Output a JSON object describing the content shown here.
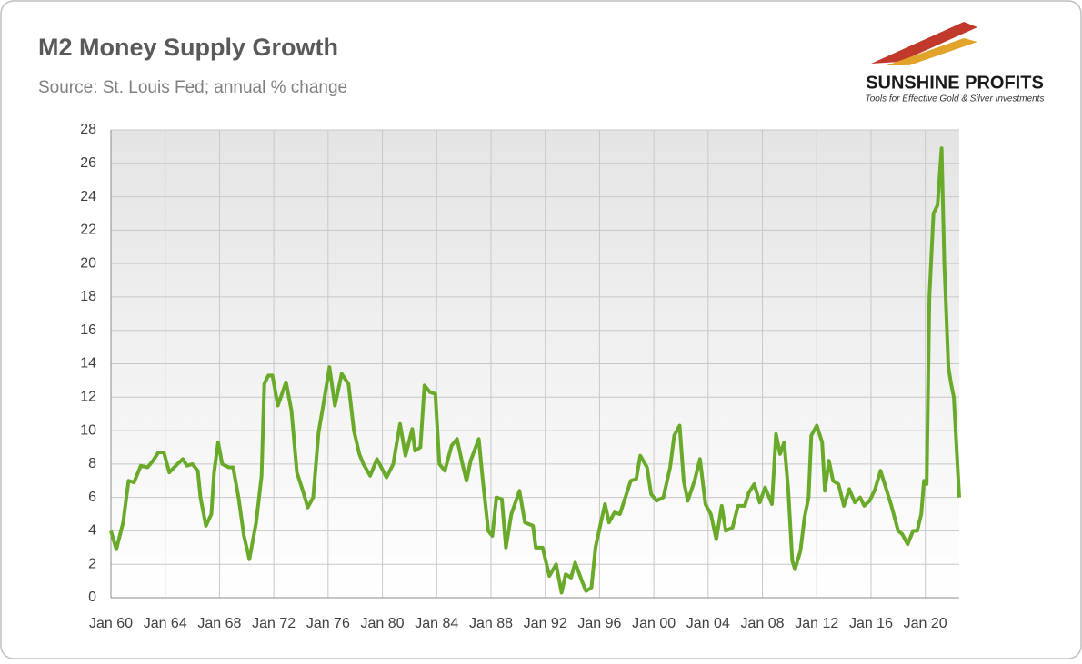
{
  "chart_data": {
    "type": "line",
    "title": "M2 Money Supply Growth",
    "subtitle": "Source: St. Louis Fed; annual % change",
    "xlim": [
      1960,
      2022.5
    ],
    "ylim": [
      0,
      28
    ],
    "yticks": [
      0,
      2,
      4,
      6,
      8,
      10,
      12,
      14,
      16,
      18,
      20,
      22,
      24,
      26,
      28
    ],
    "xticks": [
      {
        "value": 1960,
        "label": "Jan 60"
      },
      {
        "value": 1964,
        "label": "Jan 64"
      },
      {
        "value": 1968,
        "label": "Jan 68"
      },
      {
        "value": 1972,
        "label": "Jan 72"
      },
      {
        "value": 1976,
        "label": "Jan 76"
      },
      {
        "value": 1980,
        "label": "Jan 80"
      },
      {
        "value": 1984,
        "label": "Jan 84"
      },
      {
        "value": 1988,
        "label": "Jan 88"
      },
      {
        "value": 1992,
        "label": "Jan 92"
      },
      {
        "value": 1996,
        "label": "Jan 96"
      },
      {
        "value": 2000,
        "label": "Jan 00"
      },
      {
        "value": 2004,
        "label": "Jan 04"
      },
      {
        "value": 2008,
        "label": "Jan 08"
      },
      {
        "value": 2012,
        "label": "Jan 12"
      },
      {
        "value": 2016,
        "label": "Jan 16"
      },
      {
        "value": 2020,
        "label": "Jan 20"
      }
    ],
    "grid": true,
    "x": [
      1960.0,
      1960.4,
      1960.9,
      1961.3,
      1961.7,
      1962.2,
      1962.7,
      1963.1,
      1963.5,
      1963.9,
      1964.3,
      1964.9,
      1965.3,
      1965.6,
      1966.0,
      1966.4,
      1966.6,
      1967.0,
      1967.4,
      1967.6,
      1967.9,
      1968.2,
      1968.7,
      1969.0,
      1969.4,
      1969.8,
      1970.2,
      1970.7,
      1971.1,
      1971.3,
      1971.6,
      1971.9,
      1972.3,
      1972.9,
      1973.3,
      1973.7,
      1974.1,
      1974.5,
      1974.9,
      1975.3,
      1975.7,
      1976.1,
      1976.5,
      1977.0,
      1977.5,
      1977.9,
      1978.3,
      1978.6,
      1979.1,
      1979.6,
      1980.3,
      1980.8,
      1981.0,
      1981.3,
      1981.7,
      1982.2,
      1982.4,
      1982.8,
      1983.1,
      1983.5,
      1983.9,
      1984.2,
      1984.6,
      1985.1,
      1985.5,
      1985.9,
      1986.2,
      1986.5,
      1987.1,
      1987.4,
      1987.8,
      1988.1,
      1988.4,
      1988.8,
      1989.1,
      1989.5,
      1990.1,
      1990.5,
      1991.1,
      1991.3,
      1991.8,
      1992.3,
      1992.8,
      1993.2,
      1993.5,
      1993.9,
      1994.2,
      1994.7,
      1995.0,
      1995.4,
      1995.7,
      1996.1,
      1996.4,
      1996.7,
      1997.1,
      1997.5,
      1997.9,
      1998.3,
      1998.7,
      1999.0,
      1999.5,
      1999.8,
      2000.2,
      2000.7,
      2001.2,
      2001.5,
      2001.9,
      2002.2,
      2002.5,
      2003.0,
      2003.4,
      2003.8,
      2004.2,
      2004.6,
      2005.0,
      2005.3,
      2005.8,
      2006.2,
      2006.7,
      2007.0,
      2007.4,
      2007.8,
      2008.2,
      2008.7,
      2009.0,
      2009.3,
      2009.6,
      2009.9,
      2010.2,
      2010.4,
      2010.8,
      2011.1,
      2011.4,
      2011.6,
      2012.0,
      2012.4,
      2012.6,
      2012.9,
      2013.2,
      2013.6,
      2014.0,
      2014.4,
      2014.8,
      2015.2,
      2015.5,
      2015.9,
      2016.3,
      2016.7,
      2017.2,
      2017.5,
      2018.0,
      2018.3,
      2018.7,
      2019.1,
      2019.4,
      2019.7,
      2019.9,
      2020.1,
      2020.3,
      2020.6,
      2020.9,
      2021.2,
      2021.4,
      2021.7,
      2021.9,
      2022.1,
      2022.3,
      2022.5
    ],
    "series": [
      {
        "name": "M2",
        "color": "#6aaa2a",
        "values": [
          4.0,
          2.9,
          4.5,
          7.0,
          6.9,
          7.9,
          7.8,
          8.2,
          8.7,
          8.7,
          7.5,
          8.0,
          8.3,
          7.9,
          8.0,
          7.6,
          6.0,
          4.3,
          5.0,
          7.5,
          9.3,
          8.0,
          7.8,
          7.8,
          6.0,
          3.7,
          2.3,
          4.5,
          7.3,
          12.8,
          13.3,
          13.3,
          11.5,
          12.9,
          11.2,
          7.5,
          6.5,
          5.4,
          6.0,
          9.9,
          11.8,
          13.8,
          11.5,
          13.4,
          12.8,
          10.0,
          8.6,
          8.0,
          7.3,
          8.3,
          7.2,
          8.0,
          9.0,
          10.4,
          8.5,
          10.1,
          8.8,
          9.0,
          12.7,
          12.3,
          12.2,
          8.0,
          7.6,
          9.1,
          9.5,
          8.0,
          7.0,
          8.2,
          9.5,
          7.0,
          4.0,
          3.7,
          6.0,
          5.9,
          3.0,
          5.0,
          6.4,
          4.5,
          4.3,
          3.0,
          3.0,
          1.3,
          2.0,
          0.3,
          1.4,
          1.2,
          2.1,
          1.0,
          0.4,
          0.6,
          3.0,
          4.5,
          5.6,
          4.5,
          5.1,
          5.0,
          6.0,
          7.0,
          7.1,
          8.5,
          7.8,
          6.2,
          5.8,
          6.0,
          7.8,
          9.7,
          10.3,
          7.0,
          5.8,
          7.0,
          8.3,
          5.6,
          5.0,
          3.5,
          5.5,
          4.0,
          4.2,
          5.5,
          5.5,
          6.3,
          6.8,
          5.7,
          6.6,
          5.6,
          9.8,
          8.6,
          9.3,
          6.5,
          2.2,
          1.7,
          2.8,
          4.8,
          6.0,
          9.7,
          10.3,
          9.3,
          6.4,
          8.2,
          7.0,
          6.8,
          5.5,
          6.5,
          5.7,
          6.0,
          5.5,
          5.8,
          6.5,
          7.6,
          6.3,
          5.5,
          4.0,
          3.8,
          3.2,
          4.0,
          4.0,
          5.0,
          7.0,
          6.8,
          18.0,
          23.0,
          23.5,
          26.9,
          20.0,
          13.8,
          12.8,
          12.0,
          9.0,
          6.0
        ]
      }
    ]
  },
  "logo": {
    "name": "SUNSHINE PROFITS",
    "tagline": "Tools for Effective Gold & Silver Investments"
  }
}
